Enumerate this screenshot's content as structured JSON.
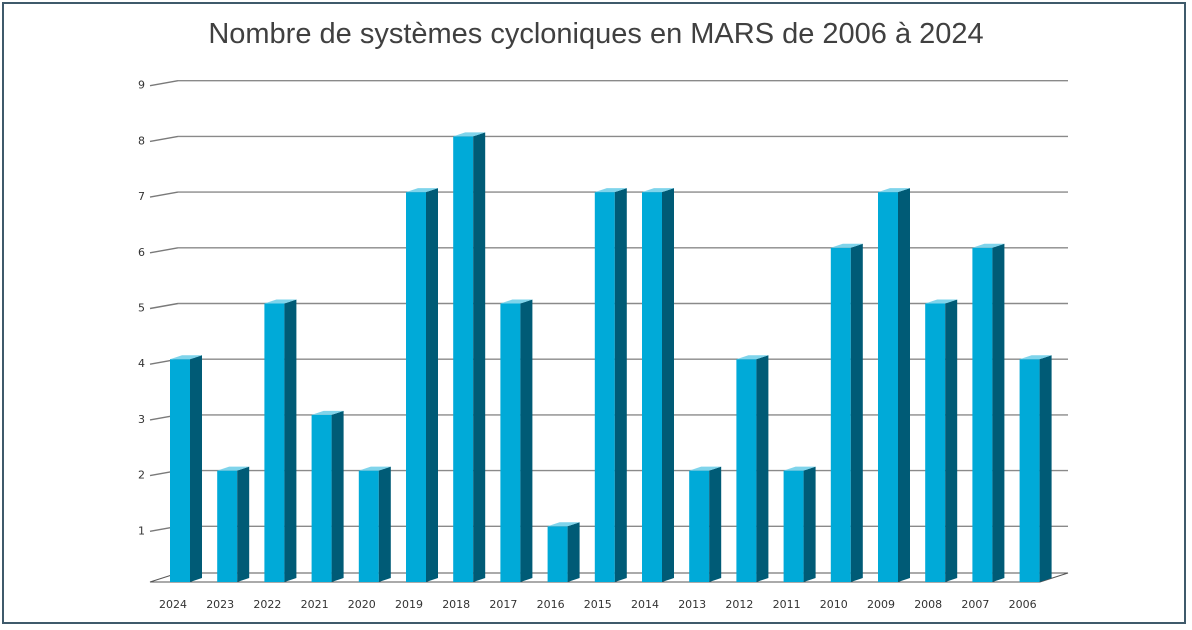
{
  "chart_data": {
    "type": "bar",
    "title": "Nombre de systèmes cycloniques en MARS de 2006 à 2024",
    "xlabel": "",
    "ylabel": "",
    "categories": [
      "2024",
      "2023",
      "2022",
      "2021",
      "2020",
      "2019",
      "2018",
      "2017",
      "2016",
      "2015",
      "2014",
      "2013",
      "2012",
      "2011",
      "2010",
      "2009",
      "2008",
      "2007",
      "2006"
    ],
    "values": [
      4,
      2,
      5,
      3,
      2,
      7,
      8,
      5,
      1,
      7,
      7,
      2,
      4,
      2,
      6,
      7,
      5,
      6,
      4
    ],
    "ylim": [
      0,
      9
    ],
    "yticks": [
      1,
      2,
      3,
      4,
      5,
      6,
      7,
      8,
      9
    ],
    "grid": true,
    "bar_color": "#00AAD8",
    "bar_side_color": "#005B76",
    "bar_top_color": "#7FD4EB"
  }
}
